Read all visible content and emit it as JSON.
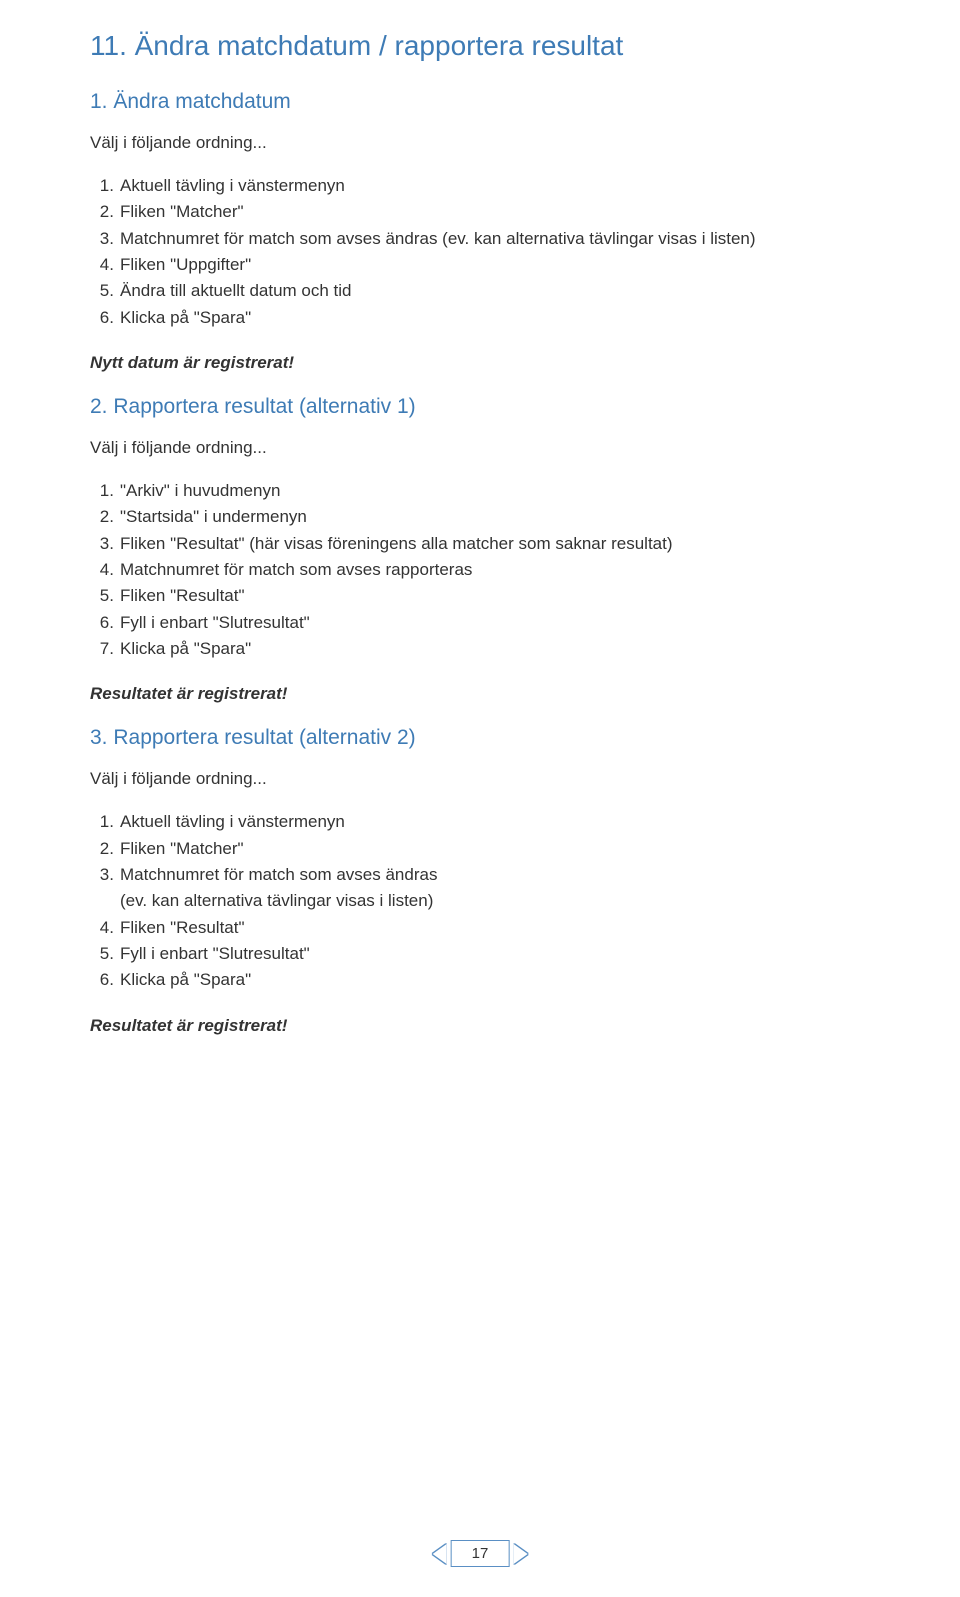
{
  "colors": {
    "heading": "#3e7bb5",
    "body_text": "#333333",
    "page_border": "#5a8fc4",
    "background": "#ffffff"
  },
  "typography": {
    "h1_fontsize": 28,
    "h2_fontsize": 21,
    "body_fontsize": 17,
    "font_family": "Arial"
  },
  "title": "11. Ändra matchdatum / rapportera resultat",
  "section1": {
    "heading": "1. Ändra matchdatum",
    "intro": "Välj i följande ordning...",
    "items": [
      "Aktuell tävling i vänstermenyn",
      "Fliken \"Matcher\"",
      "Matchnumret för match som avses ändras (ev. kan alternativa tävlingar visas i listen)",
      "Fliken \"Uppgifter\"",
      "Ändra till aktuellt datum och tid",
      "Klicka på \"Spara\""
    ],
    "result": "Nytt datum är registrerat!"
  },
  "section2": {
    "heading": "2. Rapportera resultat (alternativ 1)",
    "intro": "Välj i följande ordning...",
    "items": [
      "\"Arkiv\" i huvudmenyn",
      "\"Startsida\" i undermenyn",
      "Fliken \"Resultat\" (här visas föreningens alla matcher som saknar resultat)",
      "Matchnumret för match som avses rapporteras",
      "Fliken \"Resultat\"",
      "Fyll i enbart \"Slutresultat\"",
      "Klicka på \"Spara\""
    ],
    "result": "Resultatet är registrerat!"
  },
  "section3": {
    "heading": "3. Rapportera resultat (alternativ 2)",
    "intro": "Välj i följande ordning...",
    "items": {
      "i1": "Aktuell tävling i vänstermenyn",
      "i2": "Fliken \"Matcher\"",
      "i3a": "Matchnumret för match som avses ändras",
      "i3b": "(ev. kan alternativa tävlingar visas i listen)",
      "i4": "Fliken \"Resultat\"",
      "i5": "Fyll i enbart \"Slutresultat\"",
      "i6": "Klicka på \"Spara\""
    },
    "result": "Resultatet är registrerat!"
  },
  "page_number": "17"
}
